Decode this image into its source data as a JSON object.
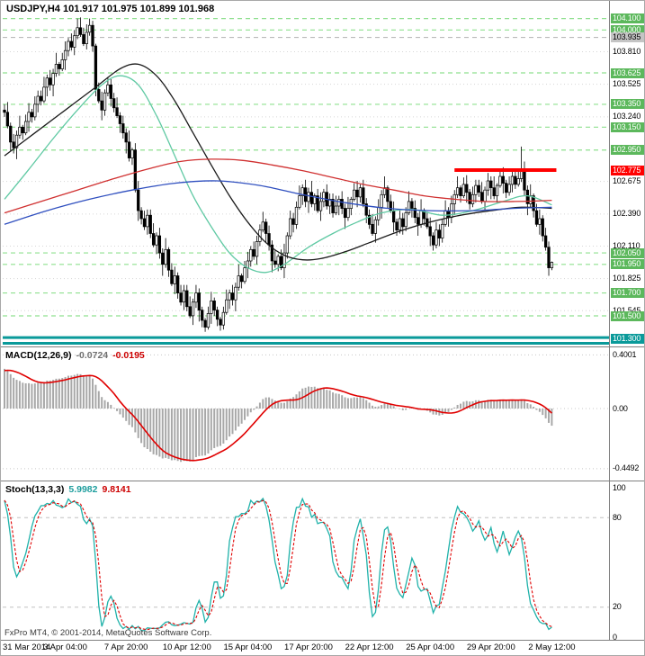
{
  "titles": {
    "main": "USDJPY,H4 101.917 101.975 101.899 101.968"
  },
  "footer": {
    "copyright": "FxPro MT4, © 2001-2014, MetaQuotes Software Corp."
  },
  "colors": {
    "bull": "#ffffff",
    "bear": "#000000",
    "candle_outline": "#000000",
    "grid": "#d6d6d6",
    "sr_dashed": "#8fe08f",
    "gray_dashed": "#b0b0b0",
    "red_line": "#ff0000",
    "teal_band": "#0a9a9a",
    "label_green": "#5cb85c",
    "label_red": "#ff0000",
    "label_teal": "#0a9a9a",
    "label_silver": "#c4c4c4",
    "macd_hist": "#a8a8a8",
    "macd_signal": "#e00000",
    "stoch_main": "#20b2aa",
    "stoch_signal": "#e00000",
    "panel_border": "#808080"
  },
  "chart_data": {
    "type": "candlestick",
    "symbol": "USDJPY",
    "timeframe": "H4",
    "current_bar": {
      "open": 101.917,
      "high": 101.975,
      "low": 101.899,
      "close": 101.968
    },
    "ylim": [
      101.24,
      104.16
    ],
    "bars_per_tick": 20,
    "x_tick_labels": [
      "31 Mar 2014",
      "3 Apr 04:00",
      "7 Apr 20:00",
      "10 Apr 12:00",
      "15 Apr 04:00",
      "17 Apr 20:00",
      "22 Apr 12:00",
      "25 Apr 04:00",
      "29 Apr 20:00",
      "2 May 12:00"
    ],
    "warmup_closes": [
      101.7,
      101.7,
      101.7,
      101.7,
      101.7,
      101.7,
      101.7,
      101.7,
      101.75,
      101.8,
      101.85,
      101.9,
      101.95,
      102.0,
      102.05,
      102.1,
      102.15,
      102.2,
      102.25,
      102.3,
      102.35,
      102.4,
      102.45,
      102.5,
      102.55,
      102.6,
      102.65,
      102.7,
      102.75,
      102.8,
      102.85,
      102.9,
      102.95,
      103.0,
      103.05,
      103.1,
      103.15,
      103.2,
      103.25,
      103.3
    ],
    "closes": [
      103.28,
      103.16,
      103.02,
      102.97,
      103.08,
      103.15,
      103.1,
      103.2,
      103.28,
      103.24,
      103.35,
      103.42,
      103.38,
      103.5,
      103.58,
      103.52,
      103.62,
      103.7,
      103.66,
      103.74,
      103.82,
      103.9,
      103.85,
      103.95,
      104.02,
      103.96,
      103.88,
      103.98,
      104.04,
      103.86,
      103.48,
      103.38,
      103.3,
      103.45,
      103.52,
      103.4,
      103.32,
      103.25,
      103.18,
      103.1,
      103.02,
      102.88,
      102.95,
      102.6,
      102.42,
      102.35,
      102.28,
      102.38,
      102.22,
      102.12,
      102.2,
      102.05,
      101.95,
      102.08,
      101.9,
      101.78,
      101.85,
      101.7,
      101.62,
      101.72,
      101.58,
      101.5,
      101.62,
      101.7,
      101.55,
      101.46,
      101.4,
      101.52,
      101.63,
      101.55,
      101.47,
      101.42,
      101.53,
      101.64,
      101.7,
      101.64,
      101.75,
      101.85,
      101.8,
      101.92,
      101.98,
      102.08,
      102.02,
      102.15,
      102.25,
      102.32,
      102.22,
      102.12,
      101.98,
      101.95,
      102.02,
      101.92,
      102.05,
      102.2,
      102.35,
      102.3,
      102.45,
      102.55,
      102.62,
      102.5,
      102.58,
      102.48,
      102.55,
      102.42,
      102.5,
      102.58,
      102.46,
      102.52,
      102.4,
      102.46,
      102.52,
      102.44,
      102.36,
      102.44,
      102.52,
      102.6,
      102.54,
      102.62,
      102.48,
      102.38,
      102.3,
      102.22,
      102.34,
      102.45,
      102.56,
      102.62,
      102.5,
      102.42,
      102.32,
      102.25,
      102.35,
      102.28,
      102.4,
      102.5,
      102.44,
      102.36,
      102.3,
      102.42,
      102.35,
      102.28,
      102.2,
      102.12,
      102.25,
      102.18,
      102.3,
      102.42,
      102.36,
      102.48,
      102.56,
      102.62,
      102.55,
      102.65,
      102.58,
      102.48,
      102.56,
      102.64,
      102.58,
      102.5,
      102.6,
      102.68,
      102.62,
      102.55,
      102.64,
      102.72,
      102.66,
      102.58,
      102.65,
      102.72,
      102.65,
      102.7,
      102.78,
      102.6,
      102.48,
      102.55,
      102.42,
      102.3,
      102.35,
      102.2,
      102.1,
      101.92,
      101.968
    ],
    "wick_up_pattern": [
      0.05,
      0.09,
      0.03,
      0.07,
      0.04,
      0.1,
      0.02,
      0.06,
      0.08,
      0.03,
      0.07,
      0.05
    ],
    "wick_dn_pattern": [
      0.04,
      0.02,
      0.08,
      0.05,
      0.1,
      0.03,
      0.06,
      0.02,
      0.09,
      0.05,
      0.03,
      0.07
    ],
    "wick_overrides": {
      "24": [
        0.08,
        0.03
      ],
      "26": [
        0.06,
        0.02
      ],
      "28": [
        0.06,
        0.03
      ],
      "29": [
        0.04,
        0.05
      ],
      "65": [
        0.03,
        0.06
      ],
      "66": [
        0.02,
        0.04
      ],
      "70": [
        0.03,
        0.06
      ],
      "71": [
        0.02,
        0.05
      ],
      "170": [
        0.2,
        0.03
      ],
      "180": [
        0.007,
        0.021
      ]
    },
    "moving_averages": [
      {
        "name": "fast-teal",
        "color": "#5fc9a3",
        "points": [
          [
            0,
            102.52
          ],
          [
            8,
            102.78
          ],
          [
            16,
            103.05
          ],
          [
            24,
            103.3
          ],
          [
            32,
            103.52
          ],
          [
            38,
            103.6
          ],
          [
            44,
            103.52
          ],
          [
            50,
            103.25
          ],
          [
            56,
            102.9
          ],
          [
            62,
            102.55
          ],
          [
            68,
            102.28
          ],
          [
            74,
            102.05
          ],
          [
            80,
            101.92
          ],
          [
            86,
            101.88
          ],
          [
            92,
            101.95
          ],
          [
            100,
            102.1
          ],
          [
            108,
            102.22
          ],
          [
            116,
            102.32
          ],
          [
            124,
            102.4
          ],
          [
            134,
            102.43
          ],
          [
            144,
            102.38
          ],
          [
            154,
            102.42
          ],
          [
            164,
            102.5
          ],
          [
            172,
            102.55
          ],
          [
            180,
            102.47
          ]
        ]
      },
      {
        "name": "mid-black",
        "color": "#1a1a1a",
        "points": [
          [
            0,
            102.9
          ],
          [
            10,
            103.1
          ],
          [
            20,
            103.3
          ],
          [
            30,
            103.5
          ],
          [
            38,
            103.66
          ],
          [
            44,
            103.7
          ],
          [
            50,
            103.6
          ],
          [
            56,
            103.38
          ],
          [
            62,
            103.1
          ],
          [
            68,
            102.82
          ],
          [
            74,
            102.55
          ],
          [
            80,
            102.32
          ],
          [
            86,
            102.14
          ],
          [
            92,
            102.03
          ],
          [
            98,
            101.99
          ],
          [
            104,
            102.0
          ],
          [
            112,
            102.06
          ],
          [
            120,
            102.14
          ],
          [
            130,
            102.24
          ],
          [
            140,
            102.32
          ],
          [
            150,
            102.38
          ],
          [
            160,
            102.42
          ],
          [
            170,
            102.45
          ],
          [
            180,
            102.44
          ]
        ]
      },
      {
        "name": "slow-red",
        "color": "#d03030",
        "points": [
          [
            0,
            102.4
          ],
          [
            12,
            102.5
          ],
          [
            24,
            102.6
          ],
          [
            36,
            102.7
          ],
          [
            48,
            102.79
          ],
          [
            58,
            102.85
          ],
          [
            68,
            102.87
          ],
          [
            78,
            102.86
          ],
          [
            88,
            102.82
          ],
          [
            98,
            102.77
          ],
          [
            108,
            102.71
          ],
          [
            118,
            102.65
          ],
          [
            128,
            102.6
          ],
          [
            138,
            102.55
          ],
          [
            148,
            102.52
          ],
          [
            158,
            102.5
          ],
          [
            168,
            102.5
          ],
          [
            180,
            102.51
          ]
        ]
      },
      {
        "name": "long-blue",
        "color": "#2f4fbf",
        "points": [
          [
            0,
            102.3
          ],
          [
            14,
            102.42
          ],
          [
            28,
            102.52
          ],
          [
            42,
            102.6
          ],
          [
            56,
            102.66
          ],
          [
            70,
            102.68
          ],
          [
            84,
            102.64
          ],
          [
            98,
            102.56
          ],
          [
            112,
            102.49
          ],
          [
            126,
            102.44
          ],
          [
            140,
            102.42
          ],
          [
            154,
            102.42
          ],
          [
            168,
            102.44
          ],
          [
            180,
            102.45
          ]
        ]
      }
    ],
    "support_resistance_dashed": [
      104.1,
      104.0,
      103.625,
      103.35,
      103.15,
      102.95,
      102.05,
      101.95,
      101.7,
      101.5
    ],
    "gray_dashed_level": 103.935,
    "teal_band_levels": [
      101.31,
      101.26
    ],
    "red_line": {
      "level": 102.775,
      "from_bar": 148,
      "to_bar": 181.5,
      "width": 4
    },
    "grid_levels": [
      103.81,
      103.525,
      103.24,
      102.675,
      102.39,
      102.11,
      101.825,
      101.545
    ],
    "price_axis_labels": [
      {
        "text": "104.100",
        "style": "green"
      },
      {
        "text": "104.000",
        "style": "green"
      },
      {
        "text": "103.935",
        "style": "silver"
      },
      {
        "text": "103.810",
        "style": "plain"
      },
      {
        "text": "103.625",
        "style": "green"
      },
      {
        "text": "103.525",
        "style": "plain"
      },
      {
        "text": "103.350",
        "style": "green"
      },
      {
        "text": "103.240",
        "style": "plain"
      },
      {
        "text": "103.150",
        "style": "green"
      },
      {
        "text": "102.950",
        "style": "green"
      },
      {
        "text": "102.775",
        "style": "red"
      },
      {
        "text": "102.675",
        "style": "plain"
      },
      {
        "text": "102.390",
        "style": "plain"
      },
      {
        "text": "102.110",
        "style": "plain"
      },
      {
        "text": "102.050",
        "style": "green"
      },
      {
        "text": "101.950",
        "style": "green"
      },
      {
        "text": "101.825",
        "style": "plain"
      },
      {
        "text": "101.700",
        "style": "green"
      },
      {
        "text": "101.545",
        "style": "plain"
      },
      {
        "text": "101.500",
        "style": "green"
      },
      {
        "text": "101.300",
        "style": "teal"
      }
    ],
    "macd": {
      "label": "MACD(12,26,9)",
      "main_text": "-0.0724",
      "signal_text": "-0.0195",
      "main_value": -0.0724,
      "signal_value": -0.0195,
      "fast_ema": 12,
      "slow_ema": 26,
      "signal_sma": 9,
      "axis_labels": [
        "0.4001",
        "0.00",
        "-0.4492"
      ],
      "axis_values": [
        0.4001,
        0,
        -0.4492
      ]
    },
    "stochastic": {
      "label": "Stoch(13,3,3)",
      "main_text": "5.9982",
      "signal_text": "9.8141",
      "main_value": 5.9982,
      "signal_value": 9.8141,
      "k_period": 13,
      "slowing": 3,
      "d_period": 3,
      "axis_labels": [
        "100",
        "80",
        "20",
        "0"
      ],
      "axis_values": [
        100,
        80,
        20,
        0
      ],
      "level_lines": [
        80,
        20
      ]
    }
  }
}
